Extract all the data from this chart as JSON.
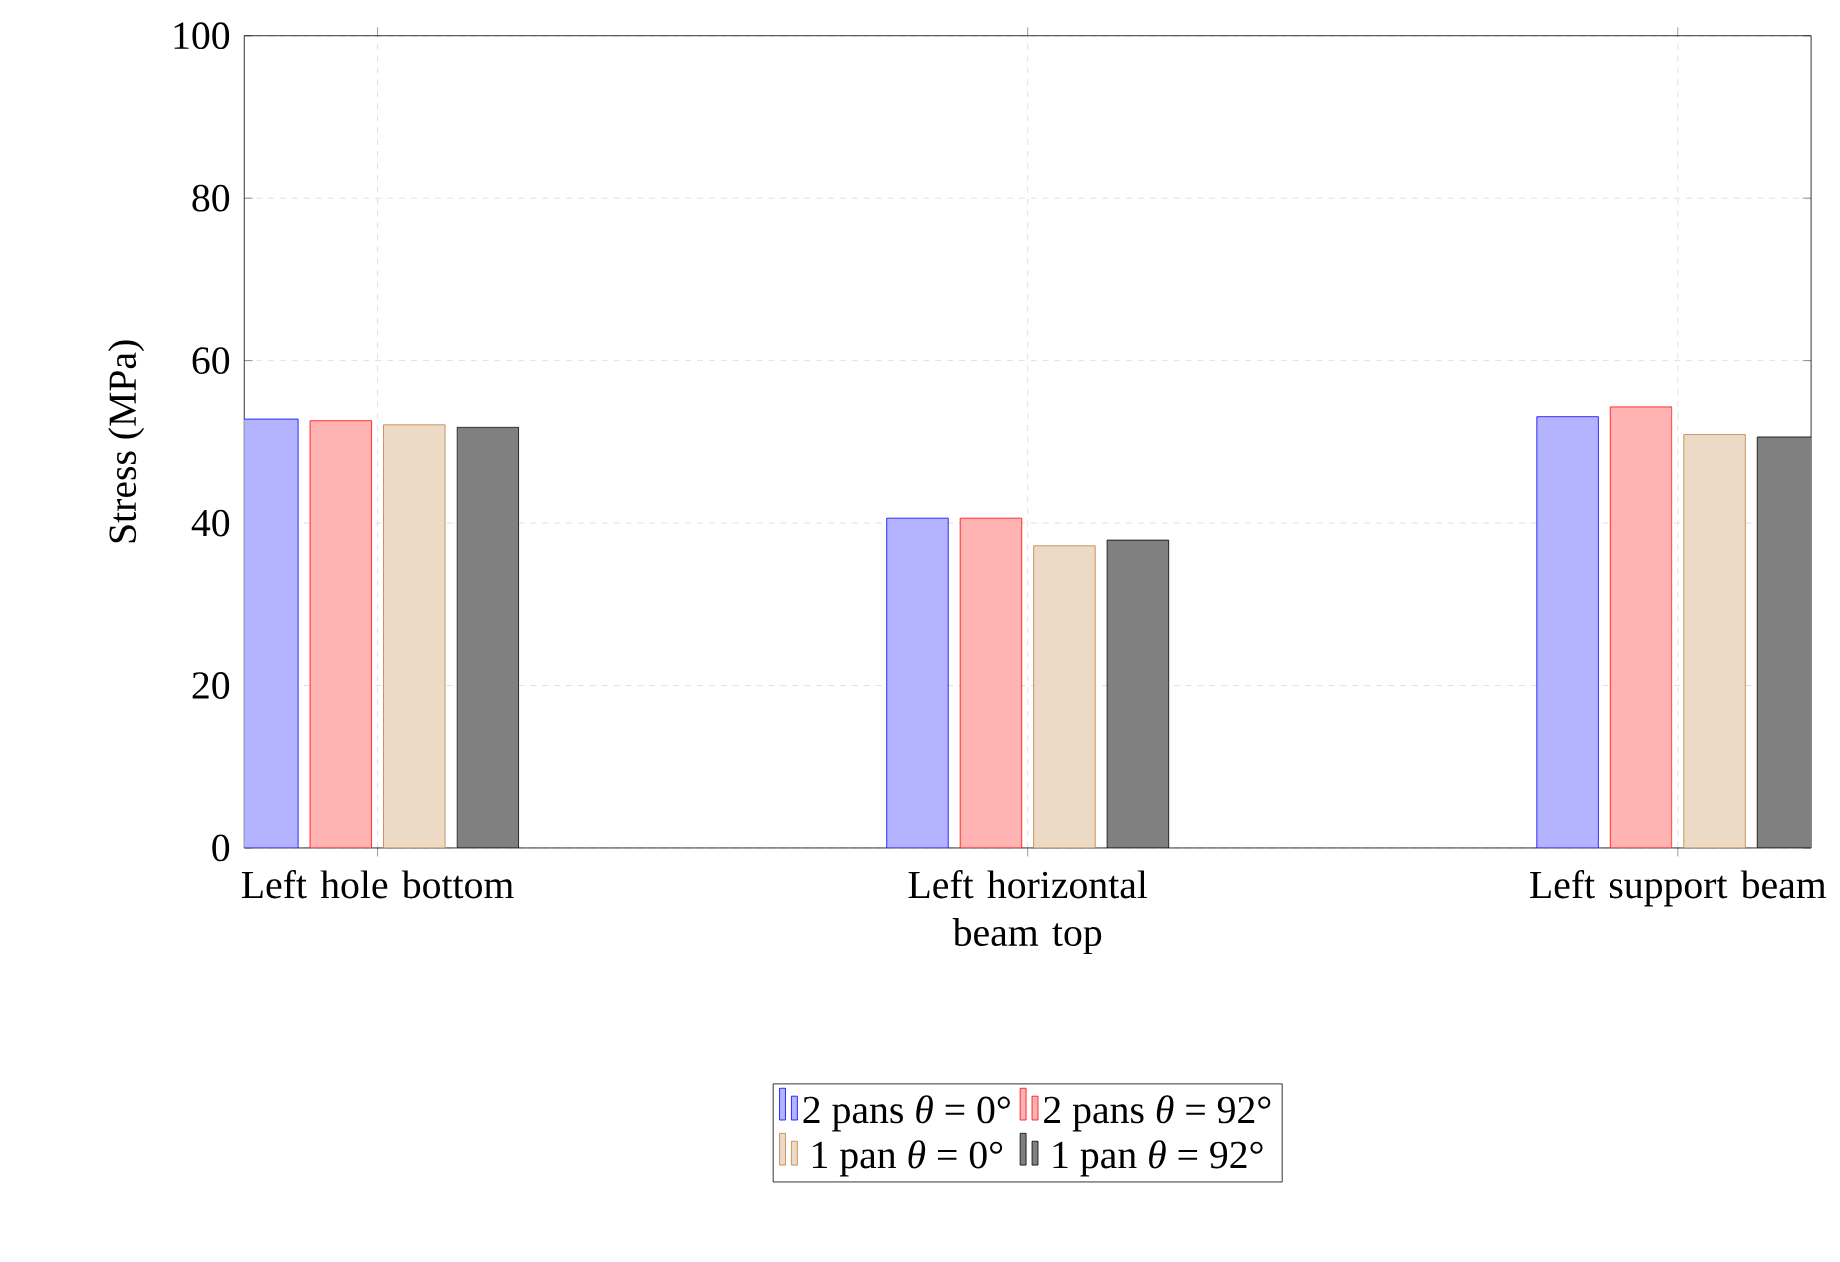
{
  "chart_data": {
    "type": "bar",
    "ylabel": "Stress (MPa)",
    "categories": [
      "Left hole bottom",
      "Left horizontal beam top",
      "Left support beam"
    ],
    "series": [
      {
        "name": "2 pans *θ* = 0°",
        "color": "#b3b3ff",
        "values": [
          52.8,
          40.6,
          53.1
        ]
      },
      {
        "name": "2 pans *θ* = 92°",
        "color": "#ffb3b3",
        "values": [
          52.6,
          40.6,
          54.3
        ]
      },
      {
        "name": "1 pan *θ* = 0°",
        "color": "#ecd9c6",
        "values": [
          52.1,
          37.2,
          50.9
        ]
      },
      {
        "name": "1 pan *θ* = 92°",
        "color": "#808080",
        "values": [
          51.8,
          37.9,
          50.6
        ]
      }
    ],
    "ylim": [
      0,
      100
    ],
    "yticks": [
      0,
      20,
      40,
      60,
      80,
      100
    ],
    "grid": true,
    "legend": "bottom"
  }
}
